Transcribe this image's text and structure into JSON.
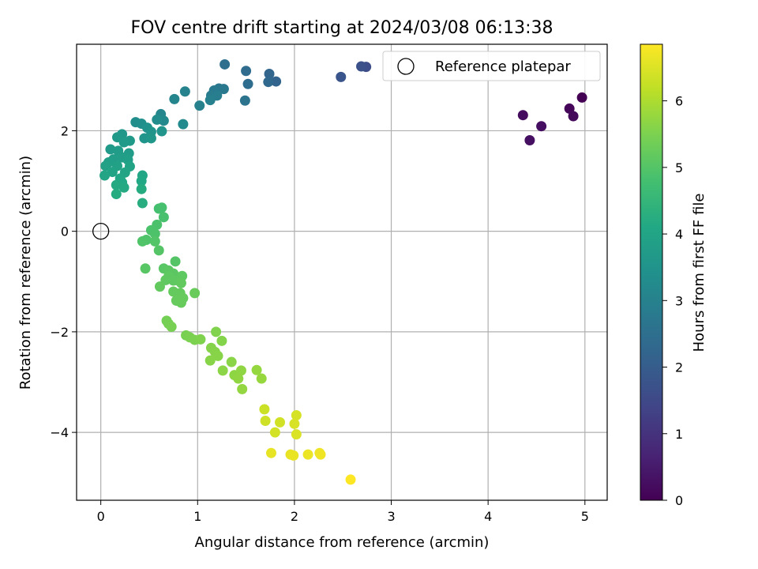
{
  "chart_data": {
    "type": "scatter",
    "title": "FOV centre drift starting at 2024/03/08 06:13:38",
    "xlabel": "Angular distance from reference (arcmin)",
    "ylabel": "Rotation from reference (arcmin)",
    "xlim": [
      -0.25,
      5.23
    ],
    "ylim": [
      -5.35,
      3.72
    ],
    "xticks": [
      0,
      1,
      2,
      3,
      4,
      5
    ],
    "yticks": [
      -4,
      -2,
      0,
      2
    ],
    "grid": true,
    "legend": {
      "placement": "top-right",
      "entries": [
        "Reference platepar"
      ]
    },
    "reference_point": {
      "x": 0,
      "y": 0,
      "label": "Reference platepar"
    },
    "colorbar": {
      "label": "Hours from first FF file",
      "range": [
        0,
        6.85
      ],
      "ticks": [
        0,
        1,
        2,
        3,
        4,
        5,
        6
      ],
      "colormap": "viridis"
    },
    "points": [
      [
        4.97,
        2.66,
        0.0
      ],
      [
        4.84,
        2.44,
        0.1
      ],
      [
        4.88,
        2.29,
        0.15
      ],
      [
        4.36,
        2.31,
        0.2
      ],
      [
        4.55,
        2.09,
        0.25
      ],
      [
        4.43,
        1.81,
        0.3
      ],
      [
        2.74,
        3.27,
        1.6
      ],
      [
        2.69,
        3.28,
        1.7
      ],
      [
        2.48,
        3.07,
        1.8
      ],
      [
        1.81,
        2.98,
        2.2
      ],
      [
        1.74,
        3.13,
        2.25
      ],
      [
        1.73,
        2.97,
        2.3
      ],
      [
        1.5,
        3.19,
        2.4
      ],
      [
        1.52,
        2.93,
        2.45
      ],
      [
        1.28,
        3.32,
        2.5
      ],
      [
        1.49,
        2.6,
        2.6
      ],
      [
        1.22,
        2.84,
        2.7
      ],
      [
        1.27,
        2.83,
        2.75
      ],
      [
        1.17,
        2.8,
        2.8
      ],
      [
        1.14,
        2.7,
        2.85
      ],
      [
        1.2,
        2.7,
        2.9
      ],
      [
        1.13,
        2.61,
        2.95
      ],
      [
        1.02,
        2.5,
        3.0
      ],
      [
        0.87,
        2.78,
        3.05
      ],
      [
        0.76,
        2.63,
        3.1
      ],
      [
        0.62,
        2.33,
        3.15
      ],
      [
        0.65,
        2.2,
        3.2
      ],
      [
        0.85,
        2.13,
        3.25
      ],
      [
        0.58,
        2.22,
        3.3
      ],
      [
        0.36,
        2.17,
        3.35
      ],
      [
        0.42,
        2.14,
        3.4
      ],
      [
        0.48,
        2.06,
        3.45
      ],
      [
        0.52,
        1.98,
        3.5
      ],
      [
        0.63,
        1.99,
        3.5
      ],
      [
        0.45,
        1.85,
        3.55
      ],
      [
        0.52,
        1.85,
        3.6
      ],
      [
        0.22,
        1.93,
        3.6
      ],
      [
        0.17,
        1.87,
        3.65
      ],
      [
        0.3,
        1.8,
        3.65
      ],
      [
        0.24,
        1.77,
        3.7
      ],
      [
        0.1,
        1.63,
        3.7
      ],
      [
        0.18,
        1.6,
        3.75
      ],
      [
        0.29,
        1.55,
        3.75
      ],
      [
        0.13,
        1.43,
        3.8
      ],
      [
        0.22,
        1.47,
        3.8
      ],
      [
        0.08,
        1.37,
        3.85
      ],
      [
        0.28,
        1.42,
        3.85
      ],
      [
        0.05,
        1.3,
        3.9
      ],
      [
        0.17,
        1.3,
        3.9
      ],
      [
        0.3,
        1.29,
        3.95
      ],
      [
        0.12,
        1.18,
        3.95
      ],
      [
        0.04,
        1.11,
        4.0
      ],
      [
        0.25,
        1.17,
        4.0
      ],
      [
        0.2,
        1.05,
        4.05
      ],
      [
        0.43,
        1.11,
        4.05
      ],
      [
        0.22,
        0.97,
        4.1
      ],
      [
        0.42,
        1.0,
        4.1
      ],
      [
        0.16,
        0.92,
        4.15
      ],
      [
        0.24,
        0.87,
        4.15
      ],
      [
        0.42,
        0.84,
        4.2
      ],
      [
        0.16,
        0.74,
        4.2
      ],
      [
        0.43,
        0.56,
        4.25
      ],
      [
        0.6,
        0.45,
        4.8
      ],
      [
        0.63,
        0.47,
        4.82
      ],
      [
        0.65,
        0.28,
        4.85
      ],
      [
        0.58,
        0.13,
        4.88
      ],
      [
        0.52,
        0.02,
        4.9
      ],
      [
        0.56,
        -0.05,
        4.92
      ],
      [
        0.47,
        -0.17,
        4.94
      ],
      [
        0.43,
        -0.2,
        4.96
      ],
      [
        0.56,
        -0.2,
        4.98
      ],
      [
        0.6,
        -0.38,
        5.0
      ],
      [
        0.77,
        -0.6,
        5.0
      ],
      [
        0.46,
        -0.74,
        5.05
      ],
      [
        0.65,
        -0.74,
        5.05
      ],
      [
        0.7,
        -0.78,
        5.1
      ],
      [
        0.75,
        -0.84,
        5.1
      ],
      [
        0.7,
        -0.9,
        5.12
      ],
      [
        0.84,
        -0.89,
        5.12
      ],
      [
        0.67,
        -0.97,
        5.15
      ],
      [
        0.75,
        -0.98,
        5.15
      ],
      [
        0.8,
        -0.98,
        5.15
      ],
      [
        0.83,
        -1.03,
        5.18
      ],
      [
        0.61,
        -1.1,
        5.18
      ],
      [
        0.75,
        -1.2,
        5.2
      ],
      [
        0.82,
        -1.23,
        5.2
      ],
      [
        0.85,
        -1.33,
        5.22
      ],
      [
        0.78,
        -1.38,
        5.22
      ],
      [
        0.83,
        -1.42,
        5.24
      ],
      [
        0.97,
        -1.23,
        5.25
      ],
      [
        0.68,
        -1.78,
        5.4
      ],
      [
        0.7,
        -1.84,
        5.42
      ],
      [
        0.73,
        -1.9,
        5.44
      ],
      [
        0.88,
        -2.07,
        5.46
      ],
      [
        0.92,
        -2.11,
        5.48
      ],
      [
        0.97,
        -2.16,
        5.5
      ],
      [
        1.03,
        -2.15,
        5.52
      ],
      [
        1.19,
        -2.0,
        5.55
      ],
      [
        1.25,
        -2.18,
        5.57
      ],
      [
        1.14,
        -2.32,
        5.59
      ],
      [
        1.18,
        -2.4,
        5.6
      ],
      [
        1.21,
        -2.48,
        5.61
      ],
      [
        1.13,
        -2.57,
        5.62
      ],
      [
        1.35,
        -2.6,
        5.64
      ],
      [
        1.26,
        -2.77,
        5.66
      ],
      [
        1.38,
        -2.86,
        5.68
      ],
      [
        1.45,
        -2.77,
        5.7
      ],
      [
        1.42,
        -2.93,
        5.72
      ],
      [
        1.46,
        -3.14,
        5.74
      ],
      [
        1.61,
        -2.76,
        5.76
      ],
      [
        1.66,
        -2.93,
        5.78
      ],
      [
        1.69,
        -3.54,
        6.3
      ],
      [
        1.7,
        -3.77,
        6.35
      ],
      [
        1.85,
        -3.8,
        6.38
      ],
      [
        1.8,
        -4.0,
        6.4
      ],
      [
        2.02,
        -3.66,
        6.42
      ],
      [
        2.0,
        -3.83,
        6.45
      ],
      [
        2.02,
        -4.04,
        6.48
      ],
      [
        1.76,
        -4.41,
        6.6
      ],
      [
        1.96,
        -4.44,
        6.62
      ],
      [
        1.99,
        -4.46,
        6.64
      ],
      [
        2.14,
        -4.44,
        6.66
      ],
      [
        2.26,
        -4.41,
        6.68
      ],
      [
        2.27,
        -4.44,
        6.7
      ],
      [
        2.58,
        -4.94,
        6.85
      ]
    ]
  }
}
